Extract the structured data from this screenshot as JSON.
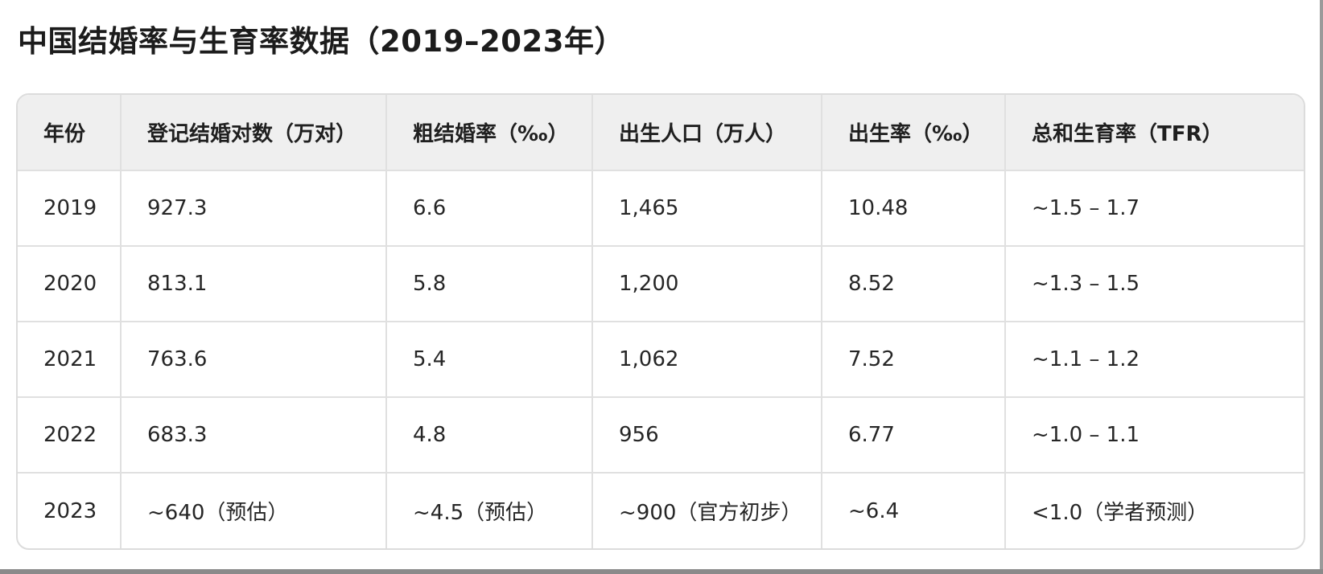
{
  "title": "中国结婚率与生育率数据（2019–2023年）",
  "table": {
    "headers": [
      "年份",
      "登记结婚对数（万对）",
      "粗结婚率（‰）",
      "出生人口（万人）",
      "出生率（‰）",
      "总和生育率（TFR）"
    ],
    "rows": [
      [
        "2019",
        "927.3",
        "6.6",
        "1,465",
        "10.48",
        "~1.5 – 1.7"
      ],
      [
        "2020",
        "813.1",
        "5.8",
        "1,200",
        "8.52",
        "~1.3 – 1.5"
      ],
      [
        "2021",
        "763.6",
        "5.4",
        "1,062",
        "7.52",
        "~1.1 – 1.2"
      ],
      [
        "2022",
        "683.3",
        "4.8",
        "956",
        "6.77",
        "~1.0 – 1.1"
      ],
      [
        "2023",
        "~640（预估）",
        "~4.5（预估）",
        "~900（官方初步）",
        "~6.4",
        "<1.0（学者预测）"
      ]
    ]
  }
}
